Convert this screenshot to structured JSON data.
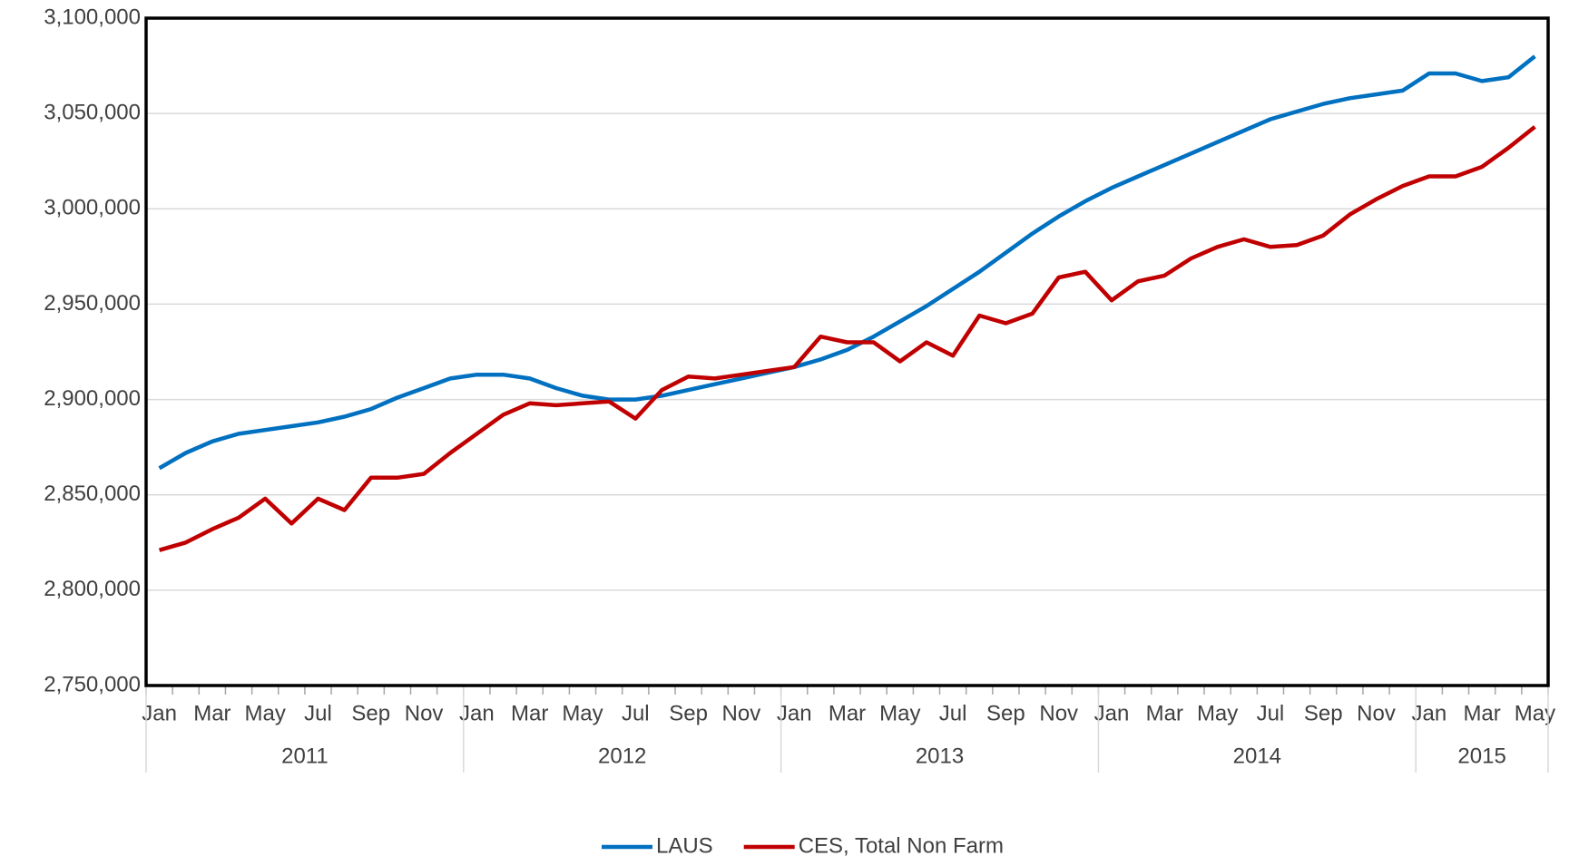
{
  "chart_data": {
    "type": "line",
    "categories": [
      "Jan",
      null,
      "Mar",
      null,
      "May",
      null,
      "Jul",
      null,
      "Sep",
      null,
      "Nov",
      null,
      "Jan",
      null,
      "Mar",
      null,
      "May",
      null,
      "Jul",
      null,
      "Sep",
      null,
      "Nov",
      null,
      "Jan",
      null,
      "Mar",
      null,
      "May",
      null,
      "Jul",
      null,
      "Sep",
      null,
      "Nov",
      null,
      "Jan",
      null,
      "Mar",
      null,
      "May",
      null,
      "Jul",
      null,
      "Sep",
      null,
      "Nov",
      null,
      "Jan",
      null,
      "Mar",
      null,
      "May"
    ],
    "years": [
      "2011",
      "2012",
      "2013",
      "2014",
      "2015"
    ],
    "series": [
      {
        "name": "LAUS",
        "color": "#0070c0",
        "values": [
          2864000,
          2872000,
          2878000,
          2882000,
          2884000,
          2886000,
          2888000,
          2891000,
          2895000,
          2901000,
          2906000,
          2911000,
          2913000,
          2913000,
          2911000,
          2906000,
          2902000,
          2900000,
          2900000,
          2902000,
          2905000,
          2908000,
          2911000,
          2914000,
          2917000,
          2921000,
          2926000,
          2933000,
          2941000,
          2949000,
          2958000,
          2967000,
          2977000,
          2987000,
          2996000,
          3004000,
          3011000,
          3017000,
          3023000,
          3029000,
          3035000,
          3041000,
          3047000,
          3051000,
          3055000,
          3058000,
          3060000,
          3062000,
          3071000,
          3071000,
          3067000,
          3069000,
          3080000
        ]
      },
      {
        "name": "CES, Total Non Farm",
        "color": "#c00000",
        "values": [
          2821000,
          2825000,
          2832000,
          2838000,
          2848000,
          2835000,
          2848000,
          2842000,
          2859000,
          2859000,
          2861000,
          2872000,
          2882000,
          2892000,
          2898000,
          2897000,
          2898000,
          2899000,
          2890000,
          2905000,
          2912000,
          2911000,
          2913000,
          2915000,
          2917000,
          2933000,
          2930000,
          2930000,
          2920000,
          2930000,
          2923000,
          2944000,
          2940000,
          2945000,
          2964000,
          2967000,
          2952000,
          2962000,
          2965000,
          2974000,
          2980000,
          2984000,
          2980000,
          2981000,
          2986000,
          2997000,
          3005000,
          3012000,
          3017000,
          3017000,
          3022000,
          3032000,
          3043000
        ]
      }
    ],
    "ylim": [
      2750000,
      3100000
    ],
    "yticks": [
      {
        "value": 2750000,
        "label": "2,750,000"
      },
      {
        "value": 2800000,
        "label": "2,800,000"
      },
      {
        "value": 2850000,
        "label": "2,850,000"
      },
      {
        "value": 2900000,
        "label": "2,900,000"
      },
      {
        "value": 2950000,
        "label": "2,950,000"
      },
      {
        "value": 3000000,
        "label": "3,000,000"
      },
      {
        "value": 3050000,
        "label": "3,050,000"
      },
      {
        "value": 3100000,
        "label": "3,100,000"
      }
    ],
    "grid": true,
    "legend": "bottom"
  }
}
